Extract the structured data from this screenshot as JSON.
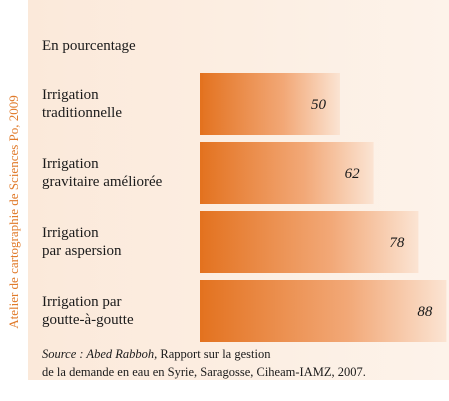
{
  "chart_data": {
    "type": "bar",
    "orientation": "horizontal",
    "subtitle": "En pourcentage",
    "categories": [
      [
        "Irrigation",
        "traditionnelle"
      ],
      [
        "Irrigation",
        "gravitaire améliorée"
      ],
      [
        "Irrigation",
        "par aspersion"
      ],
      [
        "Irrigation par",
        "goutte-à-goutte"
      ]
    ],
    "values": [
      50,
      62,
      78,
      88
    ],
    "color": "#e3721f",
    "source": {
      "label": "Source : Abed Rabboh,",
      "line1": "Rapport sur la gestion",
      "line2": "de la demande en eau en Syrie, Saragosse, Ciheam-IAMZ, 2007."
    },
    "credit": "Atelier de cartographie de Sciences Po, 2009"
  }
}
